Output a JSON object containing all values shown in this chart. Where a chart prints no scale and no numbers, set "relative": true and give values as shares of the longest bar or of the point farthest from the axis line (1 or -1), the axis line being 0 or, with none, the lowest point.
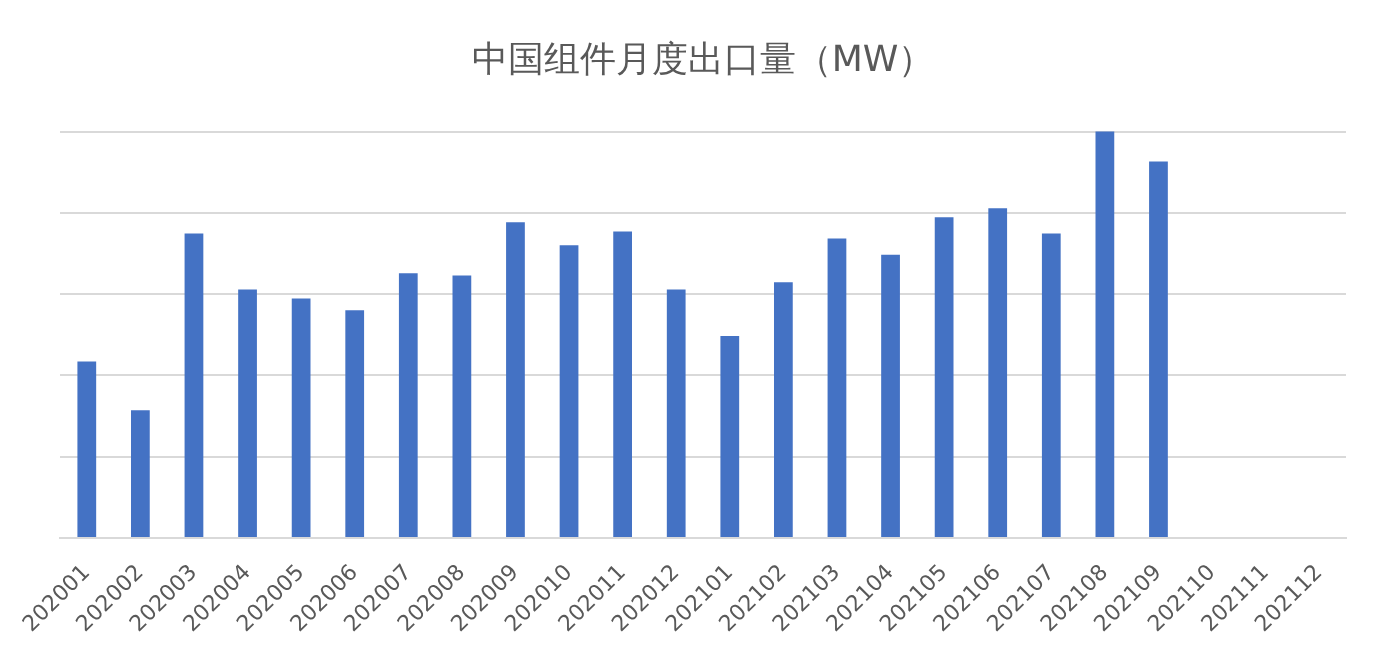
{
  "chart_data": {
    "type": "bar",
    "title": "中国组件月度出口量（MW）",
    "relative": true,
    "color": "#4472c4",
    "grid": "y",
    "categories": [
      "202001",
      "202002",
      "202003",
      "202004",
      "202005",
      "202006",
      "202007",
      "202008",
      "202009",
      "202010",
      "202011",
      "202012",
      "202101",
      "202102",
      "202103",
      "202104",
      "202105",
      "202106",
      "202107",
      "202108",
      "202109",
      "202110",
      "202111",
      "202112"
    ],
    "values": [
      0.434,
      0.314,
      0.749,
      0.611,
      0.589,
      0.56,
      0.651,
      0.646,
      0.777,
      0.72,
      0.754,
      0.611,
      0.497,
      0.629,
      0.737,
      0.697,
      0.789,
      0.811,
      0.749,
      1,
      0.926,
      null,
      null,
      null
    ]
  }
}
